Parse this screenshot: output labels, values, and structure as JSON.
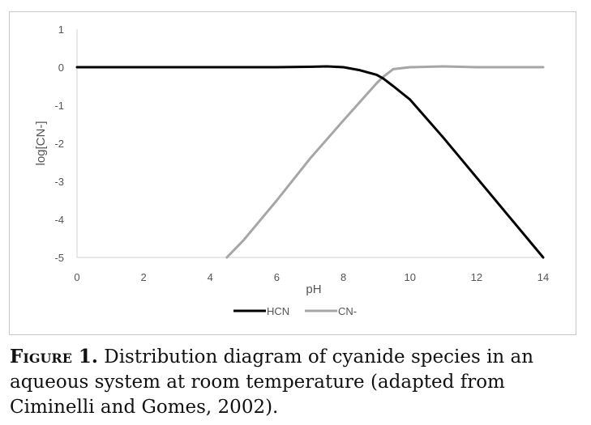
{
  "chart_data": {
    "type": "line",
    "xlabel": "pH",
    "ylabel": "log[CN-]",
    "xlim": [
      0,
      14
    ],
    "ylim": [
      -5,
      1
    ],
    "xticks": [
      "0",
      "2",
      "4",
      "6",
      "8",
      "10",
      "12",
      "14"
    ],
    "yticks": [
      "1",
      "0",
      "-1",
      "-2",
      "-3",
      "-4",
      "-5"
    ],
    "grid": false,
    "legend_position": "bottom",
    "series": [
      {
        "name": "HCN",
        "color": "#000000",
        "x": [
          0,
          2,
          4,
          6,
          7,
          7.5,
          8,
          8.5,
          9,
          9.2,
          9.5,
          10,
          11,
          12,
          13,
          14
        ],
        "y": [
          0,
          0,
          0,
          0,
          0.01,
          0.02,
          0,
          -0.08,
          -0.2,
          -0.3,
          -0.5,
          -0.85,
          -1.85,
          -2.9,
          -3.95,
          -5
        ]
      },
      {
        "name": "CN-",
        "color": "#a6a6a6",
        "x": [
          4.5,
          5,
          6,
          7,
          8,
          9,
          9.2,
          9.5,
          10,
          11,
          12,
          14
        ],
        "y": [
          -5,
          -4.55,
          -3.5,
          -2.4,
          -1.4,
          -0.42,
          -0.25,
          -0.05,
          0,
          0.02,
          0,
          0
        ]
      }
    ]
  },
  "caption": {
    "label": "Figure 1.",
    "text": " Distribution diagram of cyanide species in an aqueous system at room temperature (adapted from Ciminelli and Gomes, 2002)."
  }
}
